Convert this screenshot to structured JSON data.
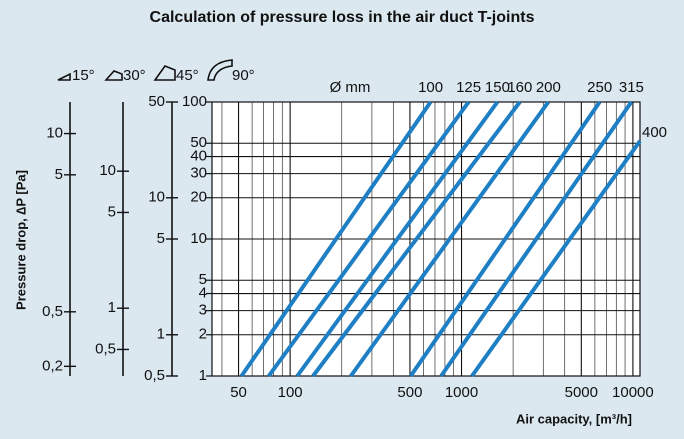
{
  "chart_data": {
    "type": "line",
    "title": "Calculation of pressure loss in the air duct T-joints",
    "xlabel": "Air capacity, [m³/h]",
    "ylabel": "Pressure drop, ∆P [Pa]",
    "size_label": "Ø mm",
    "xscale": "log",
    "yscale": "log",
    "xlim": [
      35,
      11000
    ],
    "ylim": [
      1,
      100
    ],
    "xticks": [
      50,
      100,
      500,
      1000,
      5000,
      10000
    ],
    "xminor": [
      40,
      60,
      70,
      80,
      90,
      200,
      300,
      400,
      600,
      700,
      800,
      900,
      2000,
      3000,
      4000,
      6000,
      7000,
      8000,
      9000
    ],
    "yticks": [
      1,
      2,
      3,
      4,
      5,
      10,
      20,
      30,
      40,
      50,
      100
    ],
    "angle": "90°",
    "grid": true,
    "color": "#1f7fc4",
    "series": [
      {
        "name": "100",
        "x": [
          52,
          660
        ],
        "values": [
          1,
          100
        ]
      },
      {
        "name": "125",
        "x": [
          75,
          1100
        ],
        "values": [
          1,
          100
        ]
      },
      {
        "name": "150",
        "x": [
          110,
          1620
        ],
        "values": [
          1,
          100
        ]
      },
      {
        "name": "160",
        "x": [
          136,
          2190
        ],
        "values": [
          1,
          100
        ]
      },
      {
        "name": "200",
        "x": [
          226,
          3210
        ],
        "values": [
          1,
          100
        ]
      },
      {
        "name": "250",
        "x": [
          505,
          6400
        ],
        "values": [
          1,
          100
        ]
      },
      {
        "name": "315",
        "x": [
          760,
          9800
        ],
        "values": [
          1,
          100
        ]
      },
      {
        "name": "400",
        "x": [
          1150,
          11000
        ],
        "values": [
          1,
          52
        ]
      }
    ],
    "side_axes": [
      {
        "angle": "15°",
        "ylim": [
          0.17,
          17
        ],
        "yticks": [
          {
            "value": 0.2,
            "label": "0,2"
          },
          {
            "value": 0.5,
            "label": "0,5"
          },
          5,
          10
        ]
      },
      {
        "angle": "30°",
        "ylim": [
          0.32,
          32
        ],
        "yticks": [
          {
            "value": 0.5,
            "label": "0,5"
          },
          1,
          5,
          10
        ]
      },
      {
        "angle": "45°",
        "ylim": [
          0.5,
          50
        ],
        "yticks": [
          {
            "value": 0.5,
            "label": "0,5"
          },
          1,
          5,
          10,
          50
        ]
      }
    ]
  }
}
